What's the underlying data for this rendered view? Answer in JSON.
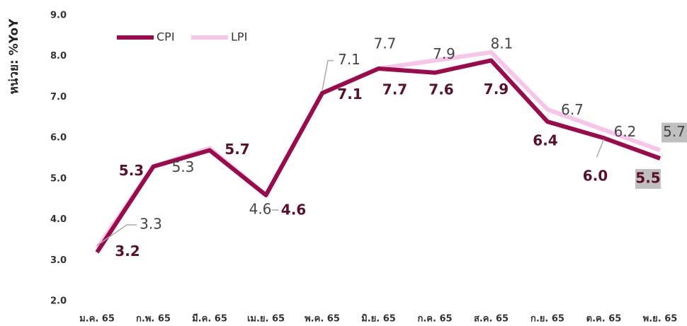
{
  "chart_data": {
    "type": "line",
    "y_label": "หน่วย: %YoY",
    "categories": [
      "ม.ค. 65",
      "ก.พ. 65",
      "มี.ค. 65",
      "เม.ย. 65",
      "พ.ค. 65",
      "มิ.ย. 65",
      "ก.ค. 65",
      "ส.ค. 65",
      "ก.ย. 65",
      "ต.ค. 65",
      "พ.ย. 65"
    ],
    "series": [
      {
        "name": "CPI",
        "color": "#9b0a4b",
        "values": [
          3.2,
          5.3,
          5.7,
          4.6,
          7.1,
          7.7,
          7.6,
          7.9,
          6.4,
          6.0,
          5.5
        ],
        "value_labels": [
          "3.2",
          "5.3",
          "5.7",
          "4.6",
          "7.1",
          "7.7",
          "7.6",
          "7.9",
          "6.4",
          "6.0",
          "5.5"
        ]
      },
      {
        "name": "LPI",
        "color": "#f7c4ea",
        "values": [
          3.3,
          5.3,
          5.75,
          4.6,
          7.1,
          7.7,
          7.9,
          8.1,
          6.7,
          6.2,
          5.7
        ],
        "value_labels": [
          "3.3",
          "5.3",
          null,
          "4.6",
          "7.1",
          "7.7",
          "7.9",
          "8.1",
          "6.7",
          "6.2",
          "5.7"
        ]
      }
    ],
    "ylim": [
      2,
      9
    ],
    "yticks": [
      {
        "value": 2,
        "label": "2.0"
      },
      {
        "value": 3,
        "label": "3.0"
      },
      {
        "value": 4,
        "label": "4.0"
      },
      {
        "value": 5,
        "label": "5.0"
      },
      {
        "value": 6,
        "label": "6.0"
      },
      {
        "value": 7,
        "label": "7.0"
      },
      {
        "value": 8,
        "label": "8.0"
      },
      {
        "value": 9,
        "label": "9.0"
      }
    ],
    "grid": false
  }
}
